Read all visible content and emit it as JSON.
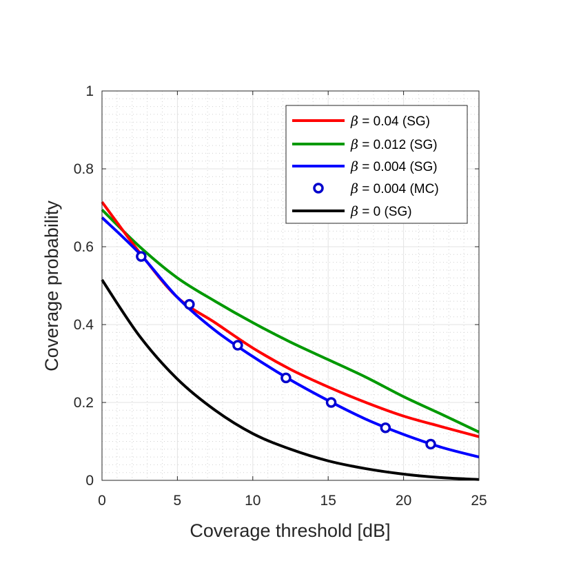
{
  "chart_data": {
    "type": "line",
    "title": "",
    "xlabel": "Coverage threshold [dB]",
    "ylabel": "Coverage probability",
    "xlim": [
      0,
      25
    ],
    "ylim": [
      0,
      1
    ],
    "xticks": [
      0,
      5,
      10,
      15,
      20,
      25
    ],
    "yticks": [
      0,
      0.2,
      0.4,
      0.6,
      0.8,
      1
    ],
    "xtick_labels": [
      "0",
      "5",
      "10",
      "15",
      "20",
      "25"
    ],
    "ytick_labels": [
      "0",
      "0.2",
      "0.4",
      "0.6",
      "0.8",
      "1"
    ],
    "grid": true,
    "minor_grid": true,
    "legend_position": "top-right",
    "series": [
      {
        "name": "β = 0.04 (SG)",
        "symbol": "β",
        "label_rest": " = 0.04 (SG)",
        "color": "#ff0000",
        "style": "line",
        "x": [
          0,
          2.5,
          5,
          7.5,
          10,
          12.5,
          15,
          17.5,
          20,
          22.5,
          25
        ],
        "y": [
          0.715,
          0.585,
          0.47,
          0.405,
          0.34,
          0.285,
          0.24,
          0.2,
          0.165,
          0.138,
          0.112
        ]
      },
      {
        "name": "β = 0.012 (SG)",
        "symbol": "β",
        "label_rest": " = 0.012 (SG)",
        "color": "#009900",
        "style": "line",
        "x": [
          0,
          2.5,
          5,
          7.5,
          10,
          12.5,
          15,
          17.5,
          20,
          22.5,
          25
        ],
        "y": [
          0.695,
          0.6,
          0.52,
          0.46,
          0.405,
          0.355,
          0.31,
          0.265,
          0.215,
          0.17,
          0.124
        ]
      },
      {
        "name": "β = 0.004 (SG)",
        "symbol": "β",
        "label_rest": " = 0.004 (SG)",
        "color": "#0000ff",
        "style": "line",
        "x": [
          0,
          2.5,
          5,
          7.5,
          10,
          12.5,
          15,
          17.5,
          20,
          22.5,
          25
        ],
        "y": [
          0.675,
          0.582,
          0.47,
          0.385,
          0.318,
          0.258,
          0.205,
          0.157,
          0.118,
          0.085,
          0.06
        ]
      },
      {
        "name": "β = 0.004 (MC)",
        "symbol": "β",
        "label_rest": " = 0.004 (MC)",
        "color": "#0000cc",
        "style": "marker",
        "x": [
          2.6,
          5.8,
          9.0,
          12.2,
          15.2,
          18.8,
          21.8
        ],
        "y": [
          0.575,
          0.452,
          0.347,
          0.263,
          0.2,
          0.135,
          0.093
        ]
      },
      {
        "name": "β = 0 (SG)",
        "symbol": "β",
        "label_rest": " = 0 (SG)",
        "color": "#000000",
        "style": "line",
        "x": [
          0,
          2.5,
          5,
          7.5,
          10,
          12.5,
          15,
          17.5,
          20,
          22.5,
          25
        ],
        "y": [
          0.515,
          0.37,
          0.26,
          0.18,
          0.12,
          0.08,
          0.05,
          0.03,
          0.016,
          0.007,
          0.002
        ]
      }
    ]
  }
}
